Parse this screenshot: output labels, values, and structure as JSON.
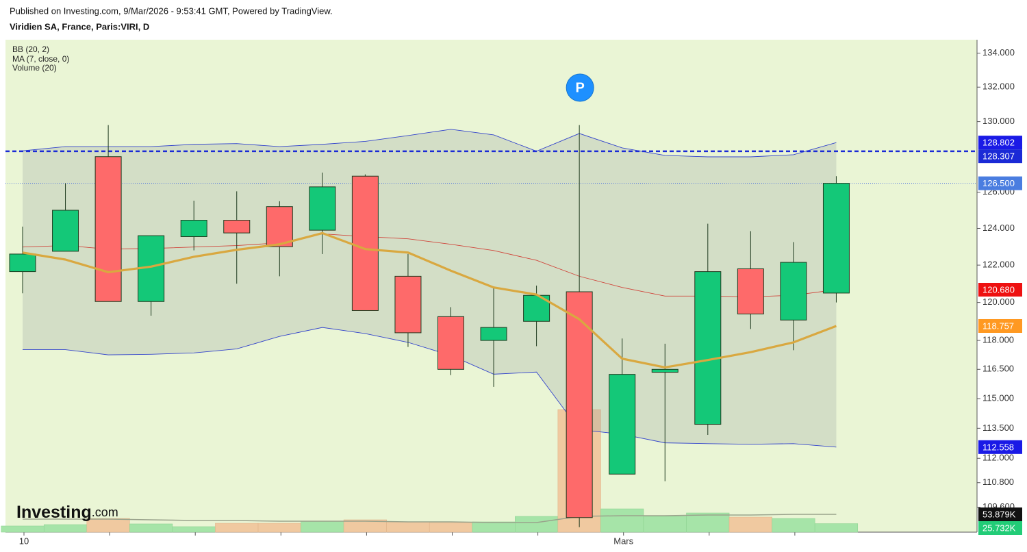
{
  "chart_data": {
    "type": "candlestick",
    "title": "Viridien SA, France, Paris:VIRI, D",
    "subtitle": "Published on Investing.com, 9/Mar/2026 - 9:53:41 GMT, Powered by TradingView.",
    "logo": "Investing",
    "logo_suffix": ".com",
    "annotation": {
      "text": "P",
      "index": 13,
      "color": "#1e90ff"
    },
    "log": true,
    "ylim": [
      108.4,
      134.8
    ],
    "yticks": [
      {
        "value": 134,
        "label": "134.000"
      },
      {
        "value": 132,
        "label": "132.000"
      },
      {
        "value": 130,
        "label": "130.000"
      },
      {
        "value": 126,
        "label": "126.000"
      },
      {
        "value": 124,
        "label": "124.000"
      },
      {
        "value": 122,
        "label": "122.000"
      },
      {
        "value": 120,
        "label": "120.000"
      },
      {
        "value": 118,
        "label": "118.000"
      },
      {
        "value": 116.5,
        "label": "116.500"
      },
      {
        "value": 115,
        "label": "115.000"
      },
      {
        "value": 113.5,
        "label": "113.500"
      },
      {
        "value": 112,
        "label": "112.000"
      },
      {
        "value": 110.8,
        "label": "110.800"
      },
      {
        "value": 109.6,
        "label": "109.600"
      }
    ],
    "y2lim": [
      0,
      1490000
    ],
    "categories": [
      "10",
      null,
      null,
      null,
      null,
      null,
      null,
      null,
      null,
      null,
      null,
      null,
      null,
      null,
      "Mars",
      null,
      null,
      null,
      null,
      null
    ],
    "candles": {
      "up_color": "#14c878",
      "down_color": "#fe6a6a",
      "border_color": "#1e3a1e",
      "open": [
        121.65,
        122.75,
        128.0,
        120.05,
        123.55,
        124.45,
        125.2,
        123.9,
        126.9,
        121.4,
        119.25,
        118.0,
        119.0,
        120.57,
        111.22,
        116.35,
        113.7,
        121.8,
        119.07,
        120.5
      ],
      "high": [
        124.1,
        126.5,
        129.8,
        123.6,
        125.53,
        126.05,
        125.5,
        127.1,
        127.0,
        122.6,
        119.75,
        120.8,
        120.9,
        129.8,
        118.1,
        117.83,
        124.26,
        123.85,
        123.25,
        126.9
      ],
      "low": [
        120.49,
        122.75,
        120.05,
        119.3,
        122.8,
        121.0,
        121.4,
        122.6,
        119.57,
        117.66,
        116.2,
        115.6,
        117.7,
        108.64,
        111.22,
        110.87,
        113.17,
        118.6,
        117.49,
        120.0
      ],
      "close": [
        122.6,
        125.0,
        120.05,
        123.6,
        124.45,
        123.75,
        123.0,
        126.3,
        119.57,
        118.4,
        116.5,
        118.68,
        120.38,
        109.1,
        116.24,
        116.5,
        121.65,
        119.39,
        122.15,
        126.5
      ]
    },
    "bb": {
      "name": "BB (20, 2)",
      "color": "#3344cc",
      "middle_color": "#d0443a",
      "fill": "rgba(150,160,160,0.28)",
      "upper": [
        128.33,
        128.57,
        128.57,
        128.57,
        128.7,
        128.74,
        128.57,
        128.7,
        128.87,
        129.2,
        129.56,
        129.24,
        128.31,
        129.32,
        128.5,
        128.07,
        127.99,
        127.99,
        128.11,
        128.802
      ],
      "middle": [
        122.98,
        123.06,
        122.87,
        122.9,
        122.98,
        123.06,
        123.21,
        123.7,
        123.55,
        123.43,
        123.13,
        122.79,
        122.26,
        121.4,
        120.8,
        120.34,
        120.34,
        120.3,
        120.38,
        120.68
      ],
      "lower": [
        117.52,
        117.52,
        117.25,
        117.28,
        117.35,
        117.56,
        118.21,
        118.68,
        118.36,
        117.9,
        117.22,
        116.25,
        116.36,
        113.43,
        113.2,
        112.77,
        112.73,
        112.7,
        112.73,
        112.558
      ]
    },
    "ma": {
      "name": "MA (7, close, 0)",
      "color": "#d9a840",
      "values": [
        122.68,
        122.3,
        121.62,
        121.92,
        122.45,
        122.83,
        123.13,
        123.74,
        122.87,
        122.68,
        121.7,
        120.8,
        120.42,
        119.11,
        117.05,
        116.6,
        116.98,
        117.39,
        117.9,
        118.757
      ]
    },
    "volume": {
      "name": "Volume (20)",
      "axis": "y2",
      "up_color": "#a6e4a8",
      "down_color": "#f0c9a0",
      "ma_color": "#9aa38c",
      "values": [
        18650,
        22800,
        41400,
        24900,
        16600,
        26900,
        26900,
        33100,
        37300,
        31100,
        29000,
        31100,
        47700,
        370900,
        70400,
        47700,
        58000,
        45600,
        41400,
        25732
      ],
      "ma": [
        39400,
        39400,
        39400,
        37300,
        35200,
        35200,
        33100,
        33100,
        33100,
        31100,
        31100,
        29000,
        29000,
        47700,
        49700,
        49700,
        51800,
        51800,
        53879,
        53879
      ]
    },
    "price_lines": [
      {
        "value": 128.307,
        "color": "#1a2ad6",
        "style": "dashed"
      },
      {
        "value": 126.5,
        "color": "#4a6ee0",
        "style": "dotted"
      }
    ],
    "markers": [
      {
        "value": 128.802,
        "label": "128.802",
        "color": "#1a1ae6"
      },
      {
        "value": 128.307,
        "label": "128.307",
        "color": "#1a2ad6"
      },
      {
        "value": 126.5,
        "label": "126.500",
        "color": "#4a7de0"
      },
      {
        "value": 120.68,
        "label": "120.680",
        "color": "#ee1111"
      },
      {
        "value": 118.757,
        "label": "118.757",
        "color": "#ff9922"
      },
      {
        "value": 112.558,
        "label": "112.558",
        "color": "#1a1ae6"
      },
      {
        "value": 53879,
        "label": "53.879K",
        "color": "#111111",
        "axis": "y2"
      },
      {
        "value": 25732,
        "label": "25.732K",
        "color": "#22cc77",
        "axis": "y2"
      }
    ]
  }
}
